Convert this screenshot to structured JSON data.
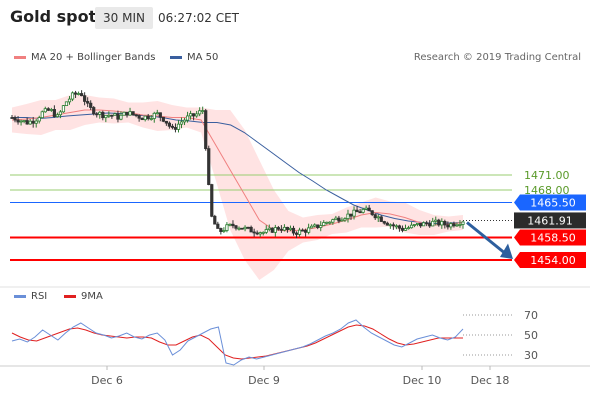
{
  "header": {
    "title": "Gold spot",
    "interval": "30 MIN",
    "time": "06:27:02 CET"
  },
  "legend": {
    "ma_bollinger": "MA 20 + Bollinger Bands",
    "ma50": "MA 50",
    "rsi": "RSI",
    "ma9": "9MA"
  },
  "credit": "Research © 2019 Trading Central",
  "colors": {
    "up_candle": "#2e7d32",
    "down_candle": "#333333",
    "bollinger_fill": "#ffd9d9",
    "ma20": "#f08080",
    "ma50": "#3a5f9f",
    "support": "#ff0000",
    "resistance": "#9acd70",
    "pivot": "#1a66ff",
    "arrow": "#2d5f9e",
    "rsi": "#6a8fd8",
    "rsi_ma": "#e02020"
  },
  "chart_data": [
    {
      "type": "candlestick",
      "ylim": [
        1450,
        1492
      ],
      "x_labels": [
        "Dec 6",
        "Dec 9",
        "Dec 10",
        "Dec 18"
      ],
      "levels": [
        {
          "value": 1471.0,
          "label": "1471.00",
          "kind": "resistance"
        },
        {
          "value": 1468.0,
          "label": "1468.00",
          "kind": "resistance"
        },
        {
          "value": 1465.5,
          "label": "1465.50",
          "kind": "pivot"
        },
        {
          "value": 1461.91,
          "label": "1461.91",
          "kind": "last"
        },
        {
          "value": 1458.5,
          "label": "1458.50",
          "kind": "support"
        },
        {
          "value": 1454.0,
          "label": "1454.00",
          "kind": "support"
        }
      ],
      "price_path": [
        1482.5,
        1482.0,
        1481.5,
        1482.0,
        1483.5,
        1484.0,
        1482.5,
        1485.5,
        1487.0,
        1487.5,
        1484.5,
        1483.5,
        1483.0,
        1483.0,
        1482.5,
        1483.5,
        1483.0,
        1482.5,
        1482.8,
        1483.2,
        1482.0,
        1480.0,
        1481.5,
        1482.5,
        1483.0,
        1484.0,
        1463.0,
        1459.5,
        1460.5,
        1461.0,
        1460.5,
        1460.0,
        1459.8,
        1459.5,
        1460.0,
        1460.5,
        1460.0,
        1459.5,
        1459.8,
        1460.2,
        1460.8,
        1461.5,
        1462.0,
        1462.5,
        1463.0,
        1463.5,
        1464.0,
        1463.5,
        1462.5,
        1461.5,
        1460.8,
        1460.2,
        1460.5,
        1461.0,
        1461.2,
        1461.5,
        1461.3,
        1461.0,
        1461.4,
        1461.91
      ],
      "ma50_path": [
        1482.5,
        1482.5,
        1482.3,
        1482.5,
        1482.8,
        1483.0,
        1483.2,
        1483.4,
        1483.3,
        1483.0,
        1482.8,
        1482.5,
        1482.0,
        1481.8,
        1481.5,
        1481.5,
        1481.0,
        1479.5,
        1477.5,
        1475.5,
        1473.5,
        1471.5,
        1469.8,
        1468.0,
        1466.5,
        1465.0,
        1464.0,
        1463.0,
        1462.3,
        1461.8,
        1461.5,
        1461.3,
        1461.4,
        1461.5
      ],
      "ma20_path": [
        1482.0,
        1482.2,
        1482.5,
        1483.0,
        1483.5,
        1484.0,
        1484.0,
        1483.8,
        1483.5,
        1483.0,
        1482.8,
        1482.5,
        1482.5,
        1482.0,
        1477.0,
        1472.0,
        1467.0,
        1462.0,
        1460.0,
        1459.8,
        1460.0,
        1460.5,
        1461.2,
        1462.0,
        1463.0,
        1463.5,
        1463.2,
        1462.5,
        1461.5,
        1461.0,
        1461.2,
        1461.5
      ],
      "bollinger_width": [
        2.5,
        3.0,
        3.5,
        3.0,
        3.5,
        3.0,
        2.5,
        2.5,
        2.0,
        2.5,
        3.0,
        2.5,
        2.0,
        2.5,
        7.0,
        12.0,
        13.0,
        12.0,
        8.0,
        4.0,
        2.5,
        2.5,
        2.0,
        2.5,
        2.5,
        3.0,
        2.5,
        3.0,
        2.5,
        2.0,
        1.5,
        1.5
      ]
    },
    {
      "type": "line",
      "name": "RSI",
      "ylim": [
        15,
        80
      ],
      "ticks": [
        "70",
        "50",
        "30"
      ],
      "rsi_path": [
        44,
        46,
        43,
        48,
        55,
        50,
        45,
        52,
        58,
        62,
        57,
        52,
        50,
        47,
        49,
        52,
        48,
        46,
        50,
        52,
        45,
        30,
        35,
        44,
        48,
        52,
        56,
        58,
        22,
        20,
        25,
        28,
        26,
        28,
        30,
        32,
        34,
        36,
        38,
        41,
        45,
        49,
        52,
        56,
        62,
        65,
        58,
        52,
        48,
        44,
        40,
        38,
        42,
        46,
        48,
        50,
        47,
        45,
        48,
        56
      ],
      "ma9_path": [
        52,
        48,
        45,
        44,
        47,
        50,
        53,
        56,
        57,
        55,
        52,
        50,
        49,
        48,
        47,
        48,
        48,
        47,
        43,
        40,
        40,
        44,
        48,
        50,
        46,
        38,
        30,
        27,
        26,
        27,
        28,
        29,
        31,
        33,
        35,
        37,
        39,
        42,
        46,
        50,
        54,
        58,
        60,
        59,
        56,
        51,
        46,
        42,
        40,
        41,
        43,
        45,
        47,
        47,
        47,
        47
      ]
    }
  ]
}
